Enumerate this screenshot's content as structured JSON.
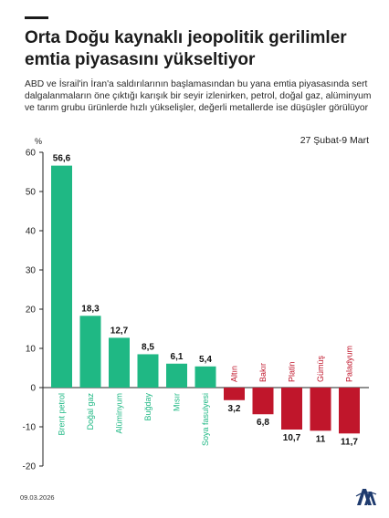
{
  "header": {
    "title": "Orta Doğu kaynaklı jeopolitik gerilimler emtia piyasasını yükseltiyor",
    "subtitle": "ABD ve İsrail'in İran'a saldırılarının başlamasından bu yana emtia piyasasında sert dalgalanmaların öne çıktığı karışık bir seyir izlenirken, petrol, doğal gaz, alüminyum ve tarım grubu ürünlerde hızlı yükselişler, değerli metallerde ise düşüşler görülüyor",
    "date_range": "27 Şubat-9 Mart"
  },
  "footer": {
    "date": "09.03.2026",
    "logo_icon": "aa-logo-icon"
  },
  "colors": {
    "positive": "#1fb884",
    "negative": "#c0162b",
    "axis": "#222222",
    "logo": "#1f3b6e"
  },
  "chart_data": {
    "type": "bar",
    "categories": [
      "Brent petrol",
      "Doğal gaz",
      "Alüminyum",
      "Buğday",
      "Mısır",
      "Soya fasulyesi",
      "Altın",
      "Bakır",
      "Platin",
      "Gümüş",
      "Paladyum"
    ],
    "values": [
      56.6,
      18.3,
      12.7,
      8.5,
      6.1,
      5.4,
      -3.2,
      -6.8,
      -10.7,
      -11.0,
      -11.7
    ],
    "value_labels": [
      "56,6",
      "18,3",
      "12,7",
      "8,5",
      "6,1",
      "5,4",
      "3,2",
      "6,8",
      "10,7",
      "11",
      "11,7"
    ],
    "ylabel": "%",
    "ylim": [
      -20,
      60
    ],
    "yticks": [
      60,
      50,
      40,
      30,
      20,
      10,
      0,
      -10,
      -20
    ],
    "grid": false
  }
}
